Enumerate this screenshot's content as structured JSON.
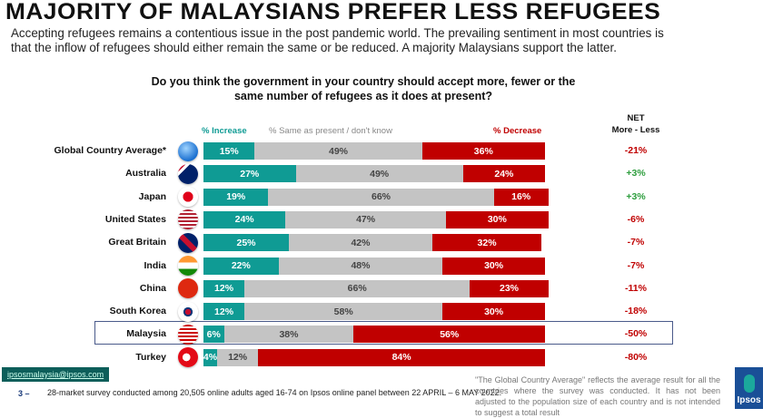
{
  "header": {
    "title": "MAJORITY OF MALAYSIANS PREFER LESS REFUGEES",
    "subtitle": "Accepting refugees remains a contentious issue in the post pandemic world. The prevailing sentiment in most countries is that the inflow of refugees should either remain the same or be reduced. A majority Malaysians support the latter."
  },
  "chart_data": {
    "type": "bar",
    "stacked": true,
    "orientation": "horizontal",
    "title": "Do you think the government in your country should accept more, fewer or the same number of refugees as it does at present?",
    "categories": [
      "Global Country Average*",
      "Australia",
      "Japan",
      "United States",
      "Great Britain",
      "India",
      "China",
      "South Korea",
      "Malaysia",
      "Turkey"
    ],
    "series": [
      {
        "name": "% Increase",
        "color": "#0f9b94",
        "values": [
          15,
          27,
          19,
          24,
          25,
          22,
          12,
          12,
          6,
          4
        ]
      },
      {
        "name": "% Same as present / don't know",
        "color": "#c4c4c4",
        "values": [
          49,
          49,
          66,
          47,
          42,
          48,
          66,
          58,
          38,
          12
        ]
      },
      {
        "name": "% Decrease",
        "color": "#c00000",
        "values": [
          36,
          24,
          16,
          30,
          32,
          30,
          23,
          30,
          56,
          84
        ]
      }
    ],
    "net_header": [
      "NET",
      "More - Less"
    ],
    "net": [
      "-21%",
      "+3%",
      "+3%",
      "-6%",
      "-7%",
      "-7%",
      "-11%",
      "-18%",
      "-50%",
      "-80%"
    ],
    "net_colors": {
      "positive": "#2e9e3e",
      "negative": "#c00000"
    },
    "highlighted": "Malaysia",
    "flags": [
      "globe",
      "australia",
      "japan",
      "united-states",
      "great-britain",
      "india",
      "china",
      "south-korea",
      "malaysia",
      "turkey"
    ]
  },
  "footer": {
    "email": "ipsosmalaysia@ipsos.com",
    "page": "3 –",
    "note": "28-market survey conducted among 20,505 online adults aged 16-74  on Ipsos online panel between 22 APRIL – 6 MAY 2022.",
    "disclaimer": "\"The Global Country Average\" reflects the average result for all the countries where the survey was conducted. It has not been adjusted to the population size of each country and is not intended to suggest a total result",
    "logo": "Ipsos"
  }
}
